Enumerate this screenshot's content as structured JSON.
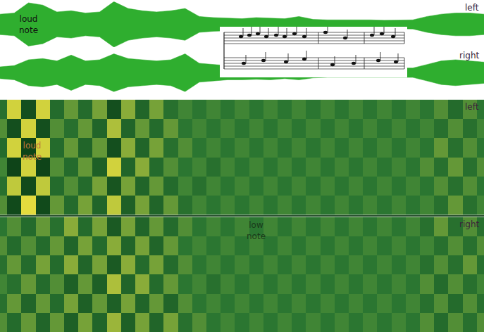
{
  "chart_data": [
    {
      "type": "area",
      "x": [
        0,
        20,
        40,
        60,
        80,
        100,
        120,
        140,
        160,
        180,
        200,
        220,
        240,
        260,
        280,
        300,
        320,
        340,
        360,
        380,
        400,
        420,
        440,
        460,
        480,
        500,
        520,
        540,
        560,
        580,
        600,
        620,
        640,
        660,
        680
      ],
      "xlim": [
        0,
        680
      ],
      "ylim": [
        -1,
        1
      ],
      "tick_labels": false,
      "series": [
        {
          "name": "left",
          "color": "#2fae2f",
          "values": [
            0.45,
            0.5,
            0.95,
            0.85,
            0.55,
            0.6,
            0.5,
            0.55,
            1.0,
            0.7,
            0.6,
            0.55,
            0.6,
            0.7,
            0.35,
            0.3,
            0.28,
            0.25,
            0.3,
            0.28,
            0.25,
            0.35,
            0.22,
            0.2,
            0.2,
            0.22,
            0.2,
            0.18,
            0.18,
            0.2,
            0.35,
            0.45,
            0.5,
            0.5,
            0.45
          ]
        },
        {
          "name": "right",
          "color": "#2fae2f",
          "values": [
            0.25,
            0.3,
            0.55,
            0.6,
            0.5,
            0.75,
            0.5,
            0.55,
            0.8,
            0.6,
            0.55,
            0.5,
            0.55,
            0.8,
            0.4,
            0.35,
            0.3,
            0.3,
            0.28,
            0.3,
            0.25,
            0.3,
            0.22,
            0.2,
            0.2,
            0.2,
            0.2,
            0.18,
            0.18,
            0.2,
            0.35,
            0.5,
            0.55,
            0.5,
            0.45
          ]
        }
      ],
      "annotations": [
        {
          "text": "loud note",
          "x": 40,
          "series": "left"
        }
      ]
    },
    {
      "type": "heatmap",
      "x": [
        0,
        20,
        40,
        60,
        80,
        100,
        120,
        140,
        160,
        180,
        200,
        220,
        240,
        260,
        280,
        300,
        320,
        340,
        360,
        380,
        400,
        420,
        440,
        460,
        480,
        500,
        520,
        540,
        560,
        580,
        600,
        620,
        640,
        660,
        680
      ],
      "xlim": [
        0,
        680
      ],
      "zlim": [
        -1,
        1
      ],
      "tick_labels": false,
      "panels": [
        {
          "name": "left",
          "z": [
            [
              0.2,
              -0.9,
              1.0,
              -0.9,
              0.3,
              -0.3,
              0.4,
              -0.4,
              0.8,
              -0.5,
              0.4,
              -0.4,
              0.3,
              -0.2,
              0.1,
              -0.1,
              0.1,
              -0.1,
              0.1,
              -0.1,
              0.1,
              -0.1,
              0.1,
              -0.1,
              0.1,
              -0.1,
              0.1,
              -0.1,
              0.1,
              -0.1,
              0.1,
              -0.2,
              0.3,
              -0.2,
              0.1
            ],
            [
              -0.2,
              0.8,
              -0.9,
              0.8,
              -0.3,
              0.2,
              -0.3,
              0.4,
              -0.7,
              0.4,
              -0.4,
              0.3,
              -0.3,
              0.1,
              -0.2,
              0.1,
              -0.1,
              0.1,
              -0.1,
              0.1,
              -0.1,
              0.1,
              -0.1,
              0.1,
              -0.1,
              0.1,
              -0.1,
              0.1,
              -0.1,
              0.1,
              -0.1,
              0.2,
              -0.2,
              0.2,
              -0.1
            ],
            [
              0.1,
              -1.0,
              0.9,
              -1.0,
              0.2,
              -0.3,
              0.3,
              -0.5,
              0.9,
              -0.4,
              0.5,
              -0.3,
              0.2,
              -0.1,
              0.1,
              -0.2,
              0.1,
              -0.1,
              0.1,
              -0.1,
              0.1,
              -0.1,
              0.1,
              -0.1,
              0.1,
              -0.1,
              0.1,
              -0.1,
              0.1,
              -0.1,
              0.2,
              -0.2,
              0.3,
              -0.2,
              0.2
            ],
            [
              -0.3,
              0.9,
              -1.0,
              0.9,
              -0.3,
              0.3,
              -0.4,
              0.3,
              -0.8,
              0.5,
              -0.4,
              0.4,
              -0.2,
              0.2,
              -0.1,
              0.1,
              -0.1,
              0.1,
              -0.1,
              0.1,
              -0.1,
              0.1,
              -0.1,
              0.1,
              -0.1,
              0.1,
              -0.1,
              0.1,
              -0.1,
              0.1,
              -0.1,
              0.3,
              -0.2,
              0.2,
              -0.1
            ],
            [
              0.2,
              -0.8,
              0.9,
              -0.8,
              0.2,
              -0.2,
              0.3,
              -0.4,
              0.7,
              -0.4,
              0.3,
              -0.3,
              0.3,
              -0.1,
              0.1,
              -0.1,
              0.1,
              -0.1,
              0.1,
              -0.1,
              0.1,
              -0.1,
              0.1,
              -0.1,
              0.1,
              -0.1,
              0.1,
              -0.1,
              0.1,
              -0.1,
              0.1,
              -0.2,
              0.2,
              -0.2,
              0.1
            ],
            [
              -0.2,
              0.9,
              -0.8,
              0.9,
              -0.3,
              0.3,
              -0.3,
              0.4,
              -0.8,
              0.5,
              -0.4,
              0.4,
              -0.2,
              0.1,
              -0.1,
              0.1,
              -0.1,
              0.1,
              -0.1,
              0.1,
              -0.1,
              0.1,
              -0.1,
              0.1,
              -0.1,
              0.1,
              -0.1,
              0.1,
              -0.1,
              0.1,
              -0.1,
              0.2,
              -0.3,
              0.2,
              -0.1
            ]
          ]
        },
        {
          "name": "right",
          "z": [
            [
              0.2,
              -0.3,
              0.3,
              -0.4,
              0.3,
              -0.5,
              0.4,
              -0.4,
              0.6,
              -0.5,
              0.4,
              -0.4,
              0.4,
              -0.2,
              0.2,
              -0.1,
              0.1,
              -0.1,
              0.1,
              -0.1,
              0.1,
              -0.1,
              0.1,
              -0.1,
              0.1,
              -0.1,
              0.1,
              -0.1,
              0.1,
              -0.1,
              0.2,
              -0.3,
              0.2,
              -0.2,
              0.2
            ],
            [
              -0.2,
              0.3,
              -0.4,
              0.3,
              -0.3,
              0.4,
              -0.5,
              0.3,
              -0.5,
              0.4,
              -0.4,
              0.3,
              -0.4,
              0.2,
              -0.1,
              0.1,
              -0.1,
              0.1,
              -0.1,
              0.1,
              -0.1,
              0.1,
              -0.1,
              0.1,
              -0.1,
              0.1,
              -0.1,
              0.1,
              -0.1,
              0.1,
              -0.2,
              0.2,
              -0.3,
              0.2,
              -0.2
            ],
            [
              0.1,
              -0.2,
              0.3,
              -0.3,
              0.2,
              -0.5,
              0.3,
              -0.5,
              0.7,
              -0.4,
              0.5,
              -0.3,
              0.3,
              -0.1,
              0.1,
              -0.2,
              0.1,
              -0.1,
              0.1,
              -0.1,
              0.1,
              -0.1,
              0.1,
              -0.1,
              0.1,
              -0.1,
              0.1,
              -0.1,
              0.1,
              -0.1,
              0.2,
              -0.3,
              0.2,
              -0.2,
              0.1
            ],
            [
              -0.2,
              0.3,
              -0.3,
              0.4,
              -0.3,
              0.5,
              -0.4,
              0.4,
              -0.6,
              0.5,
              -0.3,
              0.4,
              -0.3,
              0.2,
              -0.1,
              0.1,
              -0.1,
              0.1,
              -0.1,
              0.1,
              -0.1,
              0.1,
              -0.1,
              0.1,
              -0.1,
              0.1,
              -0.1,
              0.1,
              -0.1,
              0.1,
              -0.2,
              0.2,
              -0.2,
              0.3,
              -0.2
            ],
            [
              0.2,
              -0.3,
              0.2,
              -0.3,
              0.3,
              -0.4,
              0.4,
              -0.3,
              0.5,
              -0.4,
              0.4,
              -0.4,
              0.3,
              -0.1,
              0.1,
              -0.1,
              0.1,
              -0.1,
              0.1,
              -0.1,
              0.1,
              -0.1,
              0.1,
              -0.1,
              0.1,
              -0.1,
              0.1,
              -0.1,
              0.1,
              -0.1,
              0.1,
              -0.2,
              0.2,
              -0.2,
              0.2
            ],
            [
              -0.1,
              0.2,
              -0.3,
              0.3,
              -0.2,
              0.5,
              -0.3,
              0.4,
              -0.6,
              0.4,
              -0.4,
              0.3,
              -0.3,
              0.2,
              -0.1,
              0.1,
              -0.1,
              0.1,
              -0.1,
              0.1,
              -0.1,
              0.1,
              -0.1,
              0.1,
              -0.1,
              0.1,
              -0.1,
              0.1,
              -0.1,
              0.1,
              -0.2,
              0.3,
              -0.2,
              0.2,
              -0.2
            ]
          ]
        }
      ],
      "annotations": [
        {
          "text": "loud note",
          "x": 45,
          "panel": "left",
          "color": "#c4763a"
        },
        {
          "text": "low note",
          "x": 360,
          "panel": "right",
          "color": "#1a3a1a"
        }
      ]
    }
  ]
}
